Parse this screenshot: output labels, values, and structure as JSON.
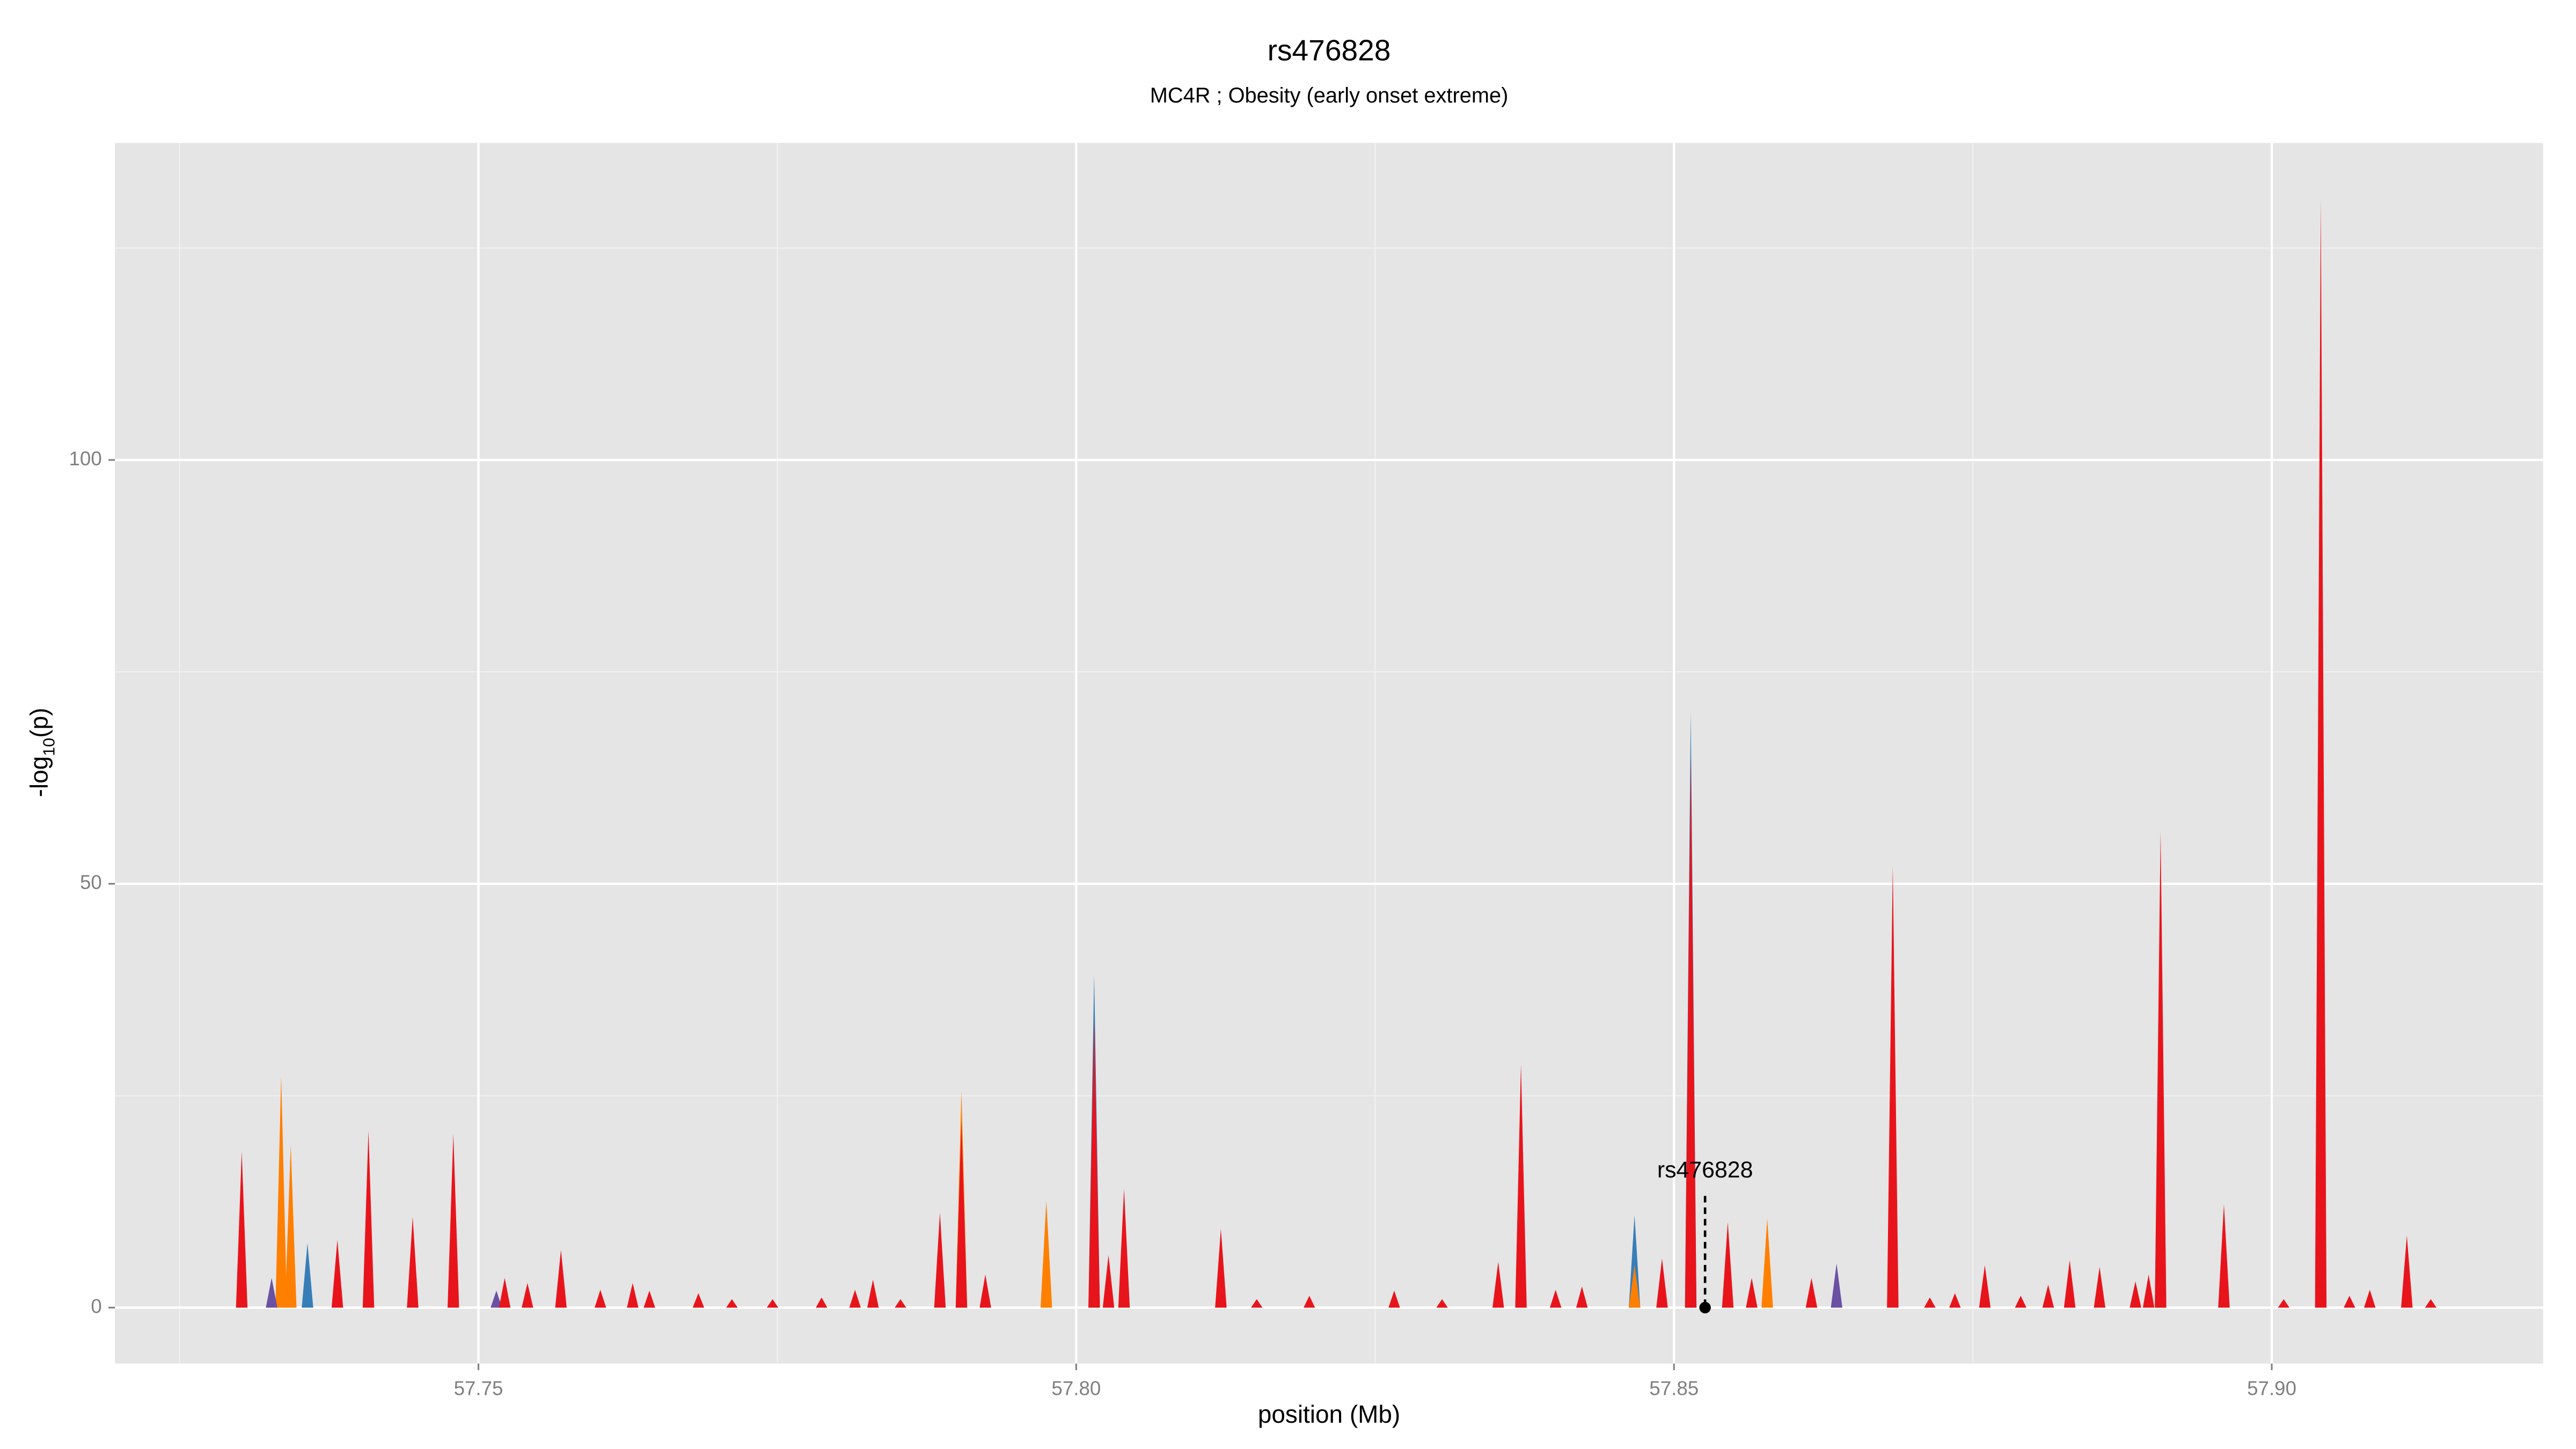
{
  "chart_data": {
    "type": "area-spikes",
    "title": "rs476828",
    "subtitle": "MC4R ; Obesity (early onset extreme)",
    "xlabel": "position (Mb)",
    "ylabel_parts": [
      "-log",
      "10",
      "(p)"
    ],
    "xlim": [
      57.7196,
      57.9227
    ],
    "ylim": [
      -6.6,
      137.4
    ],
    "xticks": [
      57.75,
      {
        "value": 57.8,
        "label": "57.80"
      },
      57.85,
      {
        "value": 57.9,
        "label": "57.90"
      }
    ],
    "yticks": [
      0,
      50,
      100
    ],
    "xminor": [
      57.725,
      57.775,
      57.825,
      57.875
    ],
    "yminor": [
      25,
      75,
      125
    ],
    "grid": true,
    "series": [
      {
        "color": "#377eb8",
        "x": [
          57.7357,
          57.8015,
          57.8467,
          57.8514,
          57.8907
        ],
        "values": [
          7.6,
          39.3,
          10.9,
          70.3,
          50
        ]
      },
      {
        "color": "#ff7f00",
        "x": [
          57.7335,
          57.7343,
          57.7904,
          57.7975,
          57.8467,
          57.8578
        ],
        "values": [
          27.3,
          19.2,
          25.6,
          12.6,
          5,
          10.5
        ]
      },
      {
        "color": "#6a51a3",
        "x": [
          57.7327,
          57.7515,
          57.8636
        ],
        "values": [
          3.5,
          2,
          5.2
        ]
      },
      {
        "color": "#e8141c",
        "x": [
          57.7302,
          57.7382,
          57.7408,
          57.7445,
          57.7479,
          57.7522,
          57.7541,
          57.7569,
          57.7602,
          57.7629,
          57.7643,
          57.7684,
          57.7712,
          57.7746,
          57.7787,
          57.7815,
          57.783,
          57.7853,
          57.7886,
          57.7904,
          57.7924,
          57.8015,
          57.8027,
          57.804,
          57.8121,
          57.8151,
          57.8195,
          57.8266,
          57.8306,
          57.8353,
          57.8372,
          57.8401,
          57.8423,
          57.849,
          57.8514,
          57.8545,
          57.8565,
          57.8615,
          57.8683,
          57.8714,
          57.8735,
          57.876,
          57.879,
          57.8813,
          57.8831,
          57.8856,
          57.8886,
          57.8897,
          57.8907,
          57.896,
          57.901,
          57.9041,
          57.9065,
          57.9082,
          57.9113,
          57.9133
        ],
        "values": [
          18.4,
          8,
          20.9,
          10.7,
          20.5,
          3.5,
          2.9,
          6.8,
          2.1,
          2.9,
          2,
          1.7,
          1,
          1,
          1.2,
          2.1,
          3.3,
          1,
          11.2,
          22,
          3.9,
          34,
          6.2,
          14,
          9.3,
          1,
          1.4,
          2,
          1,
          5.4,
          28.7,
          2.1,
          2.5,
          5.8,
          65,
          10.1,
          3.5,
          3.5,
          52.1,
          1.2,
          1.7,
          5,
          1.4,
          2.7,
          5.6,
          4.8,
          3.1,
          3.9,
          56.2,
          12.2,
          1,
          130.8,
          1.4,
          2.1,
          8.5,
          1
        ]
      }
    ],
    "annotation": {
      "text": "rs476828",
      "x": 57.8526,
      "y": 0
    }
  }
}
